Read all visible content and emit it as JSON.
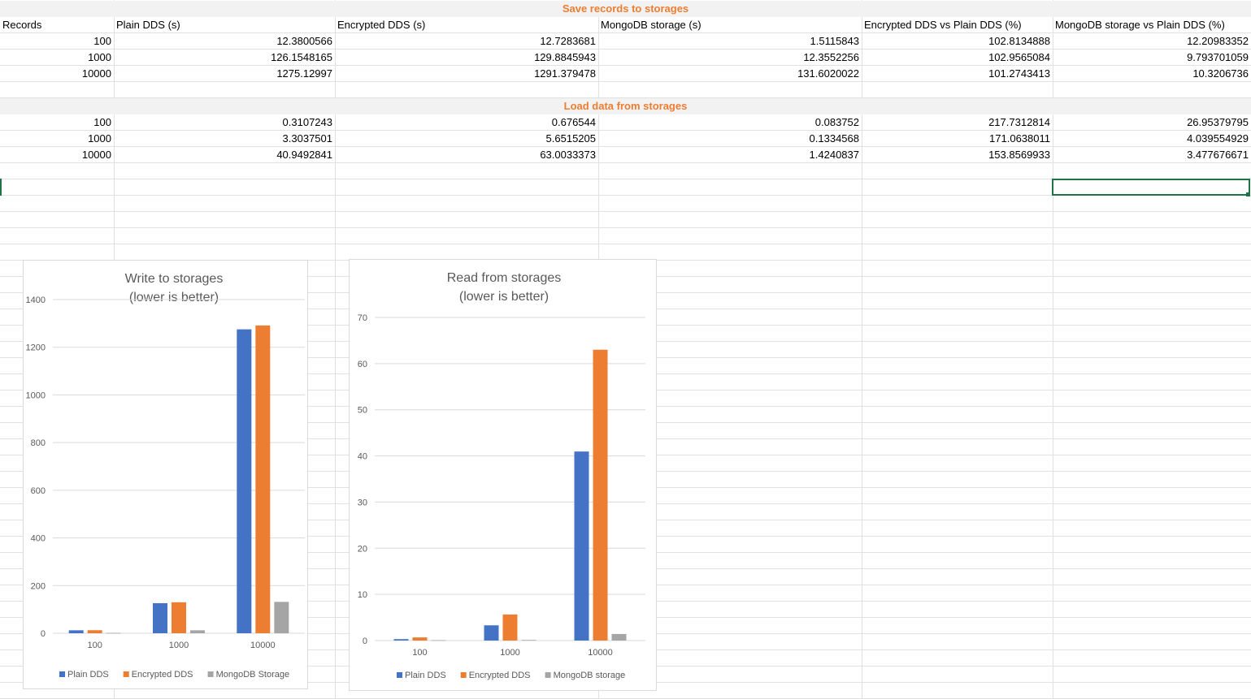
{
  "sheet": {
    "headers": [
      "Records",
      "Plain DDS (s)",
      "Encrypted DDS (s)",
      "MongoDB storage (s)",
      "Encrypted DDS vs Plain DDS (%)",
      "MongoDB storage vs Plain DDS (%)"
    ],
    "save_title": "Save records to storages",
    "save_rows": [
      [
        "100",
        "12.3800566",
        "12.7283681",
        "1.5115843",
        "102.8134888",
        "12.20983352"
      ],
      [
        "1000",
        "126.1548165",
        "129.8845943",
        "12.3552256",
        "102.9565084",
        "9.793701059"
      ],
      [
        "10000",
        "1275.12997",
        "1291.379478",
        "131.6020022",
        "101.2743413",
        "10.3206736"
      ]
    ],
    "load_title": "Load data from storages",
    "load_rows": [
      [
        "100",
        "0.3107243",
        "0.676544",
        "0.083752",
        "217.7312814",
        "26.95379795"
      ],
      [
        "1000",
        "3.3037501",
        "5.6515205",
        "0.1334568",
        "171.0638011",
        "4.039554929"
      ],
      [
        "10000",
        "40.9492841",
        "63.0033373",
        "1.4240837",
        "153.8569933",
        "3.477676671"
      ]
    ]
  },
  "colors": {
    "section_title": "#ed7d31",
    "plain": "#4472c4",
    "encrypted": "#ed7d31",
    "mongo": "#a5a5a5",
    "selection": "#217346"
  },
  "chart_data": [
    {
      "type": "bar",
      "title": "Write to storages (lower is better)",
      "title_lines": [
        "Write to storages",
        "(lower is better)"
      ],
      "categories": [
        "100",
        "1000",
        "10000"
      ],
      "series": [
        {
          "name": "Plain DDS",
          "values": [
            12.38,
            126.15,
            1275.13
          ]
        },
        {
          "name": "Encrypted DDS",
          "values": [
            12.73,
            129.88,
            1291.38
          ]
        },
        {
          "name": "MongoDB Storage",
          "values": [
            1.51,
            12.36,
            131.6
          ]
        }
      ],
      "ylim": [
        0,
        1400
      ],
      "yticks": [
        "0",
        "200",
        "400",
        "600",
        "800",
        "1000",
        "1200",
        "1400"
      ],
      "grid": true,
      "legend": "bottom"
    },
    {
      "type": "bar",
      "title": "Read from storages (lower is better)",
      "title_lines": [
        "Read from storages",
        "(lower is better)"
      ],
      "categories": [
        "100",
        "1000",
        "10000"
      ],
      "series": [
        {
          "name": "Plain DDS",
          "values": [
            0.31,
            3.3,
            40.95
          ]
        },
        {
          "name": "Encrypted DDS",
          "values": [
            0.68,
            5.65,
            63.0
          ]
        },
        {
          "name": "MongoDB storage",
          "values": [
            0.08,
            0.13,
            1.42
          ]
        }
      ],
      "ylim": [
        0,
        70
      ],
      "yticks": [
        "0",
        "10",
        "20",
        "30",
        "40",
        "50",
        "60",
        "70"
      ],
      "grid": true,
      "legend": "bottom"
    }
  ]
}
